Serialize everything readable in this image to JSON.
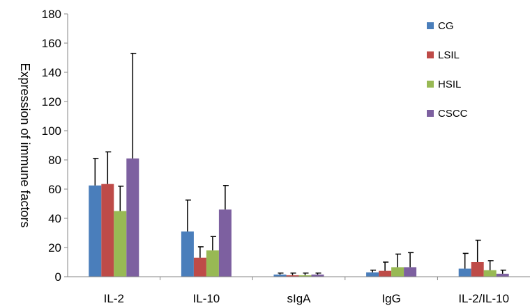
{
  "chart_data": {
    "type": "bar",
    "title": "",
    "xlabel": "",
    "ylabel": "Expression of immune factors",
    "ylim": [
      0,
      180
    ],
    "yticks": [
      0,
      20,
      40,
      60,
      80,
      100,
      120,
      140,
      160,
      180
    ],
    "grid": false,
    "error_bars": true,
    "legend_position": "top-right",
    "categories": [
      "IL-2",
      "IL-10",
      "sIgA",
      "IgG",
      "IL-2/IL-10"
    ],
    "series": [
      {
        "name": "CG",
        "color": "#4a7ebb",
        "values": [
          62.5,
          31,
          1.5,
          3,
          5.5
        ],
        "errors": [
          18.5,
          21.5,
          1,
          1.5,
          10.5
        ]
      },
      {
        "name": "LSIL",
        "color": "#be4b48",
        "values": [
          63.5,
          13,
          1,
          4,
          10
        ],
        "errors": [
          22,
          7.5,
          1.5,
          6,
          15
        ]
      },
      {
        "name": "HSIL",
        "color": "#98b954",
        "values": [
          45,
          18,
          1,
          6.5,
          4.5
        ],
        "errors": [
          17,
          9.5,
          1.5,
          9,
          6.5
        ]
      },
      {
        "name": "CSCC",
        "color": "#7d60a0",
        "values": [
          81,
          46,
          1.5,
          6.5,
          2
        ],
        "errors": [
          72,
          16.5,
          1,
          10,
          2.5
        ]
      }
    ]
  }
}
